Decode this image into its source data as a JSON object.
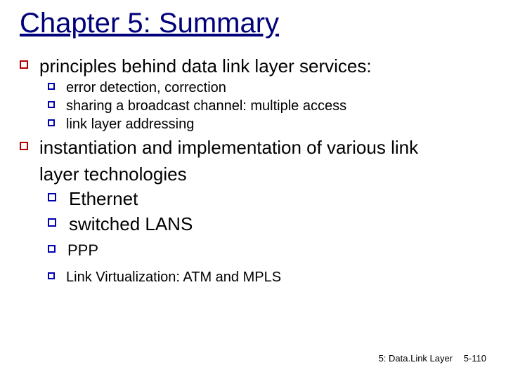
{
  "title": "Chapter 5: Summary",
  "colors": {
    "title_color": "#00007a",
    "bg": "#ffffff",
    "text": "#000000",
    "square_red": "#b00000",
    "square_blue": "#0000b0"
  },
  "body": {
    "p1": {
      "text": "principles behind data link layer services:",
      "sub": [
        "error detection, correction",
        "sharing a broadcast channel: multiple access",
        "link layer addressing"
      ]
    },
    "p2": {
      "text": "instantiation and implementation of various link",
      "cont": "layer technologies",
      "sub_big": [
        "Ethernet",
        "switched LANS"
      ],
      "sub_med": [
        "PPP"
      ],
      "sub_small": [
        "Link Virtualization: ATM and MPLS"
      ]
    }
  },
  "footer": {
    "chapter": "5: Data.Link Layer",
    "page": "5-110"
  }
}
